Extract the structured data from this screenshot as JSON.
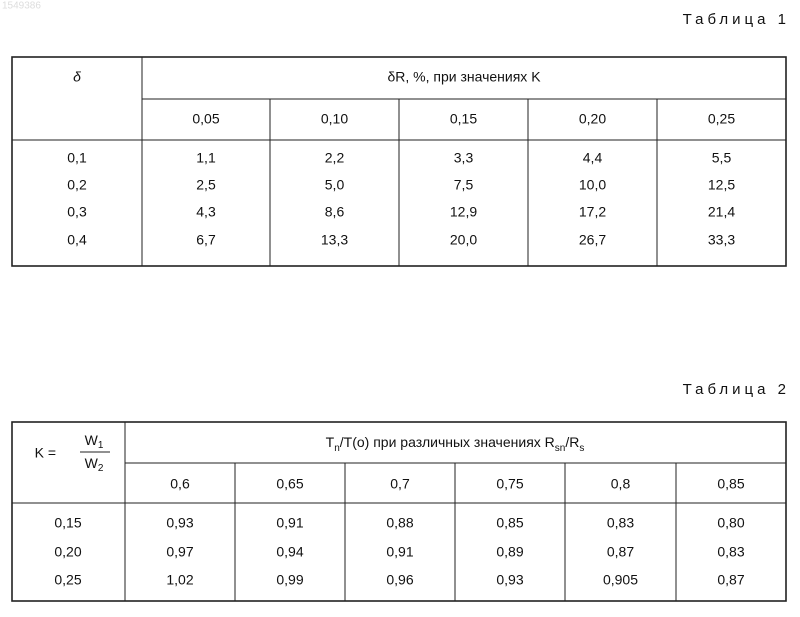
{
  "watermark": "1549386",
  "table1": {
    "caption": "Таблица 1",
    "corner": "δ",
    "group_header": "δR, %, при значениях K",
    "columns": [
      "0,05",
      "0,10",
      "0,15",
      "0,20",
      "0,25"
    ],
    "rows": [
      [
        "0,1",
        "1,1",
        "2,2",
        "3,3",
        "4,4",
        "5,5"
      ],
      [
        "0,2",
        "2,5",
        "5,0",
        "7,5",
        "10,0",
        "12,5"
      ],
      [
        "0,3",
        "4,3",
        "8,6",
        "12,9",
        "17,2",
        "21,4"
      ],
      [
        "0,4",
        "6,7",
        "13,3",
        "20,0",
        "26,7",
        "33,3"
      ]
    ]
  },
  "table2": {
    "caption": "Таблица 2",
    "corner": {
      "lhs": "K =",
      "numerator": {
        "base": "W",
        "sub": "1"
      },
      "denominator": {
        "base": "W",
        "sub": "2"
      }
    },
    "group_header": [
      {
        "text": "T"
      },
      {
        "text": "n",
        "sub": true
      },
      {
        "text": "/T(o) при различных значениях R"
      },
      {
        "text": "sn",
        "sub": true
      },
      {
        "text": "/R"
      },
      {
        "text": "s",
        "sub": true
      }
    ],
    "columns": [
      "0,6",
      "0,65",
      "0,7",
      "0,75",
      "0,8",
      "0,85"
    ],
    "rows": [
      [
        "0,15",
        "0,93",
        "0,91",
        "0,88",
        "0,85",
        "0,83",
        "0,80"
      ],
      [
        "0,20",
        "0,97",
        "0,94",
        "0,91",
        "0,89",
        "0,87",
        "0,83"
      ],
      [
        "0,25",
        "1,02",
        "0,99",
        "0,96",
        "0,93",
        "0,905",
        "0,87"
      ]
    ]
  }
}
